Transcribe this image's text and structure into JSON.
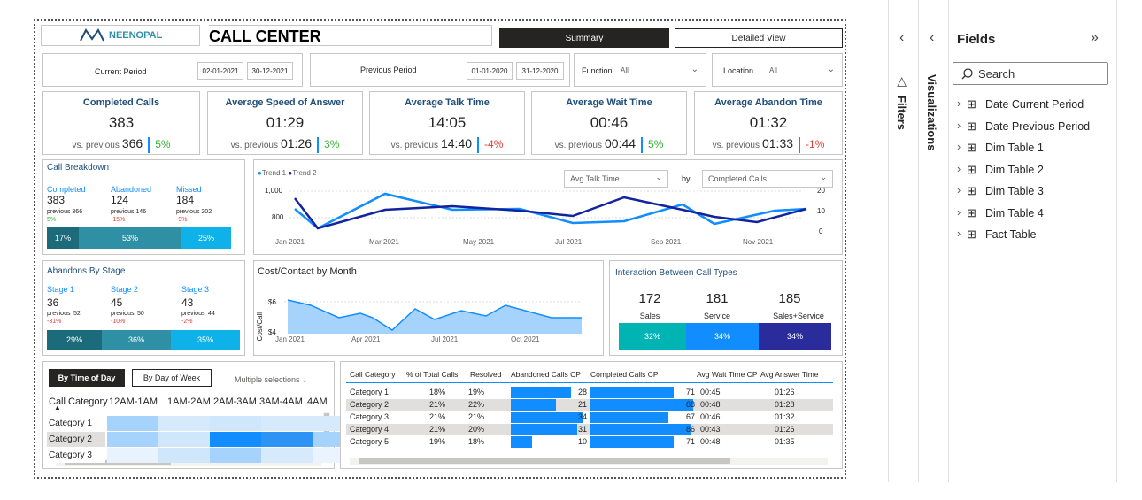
{
  "header": {
    "logo": "NEENOPAL",
    "title": "CALL CENTER",
    "btn_summary": "Summary",
    "btn_detailed": "Detailed View"
  },
  "filters": {
    "current_label": "Current Period",
    "current_from": "02-01-2021",
    "current_to": "30-12-2021",
    "previous_label": "Previous Period",
    "previous_from": "01-01-2020",
    "previous_to": "31-12-2020",
    "function_label": "Function",
    "function_value": "All",
    "location_label": "Location",
    "location_value": "All"
  },
  "kpis": [
    {
      "title": "Completed Calls",
      "value": "383",
      "prev_label": "vs. previous",
      "prev": "366",
      "delta": "5%",
      "dir": "up"
    },
    {
      "title": "Average Speed of Answer",
      "value": "01:29",
      "prev_label": "vs. previous",
      "prev": "01:26",
      "delta": "3%",
      "dir": "up"
    },
    {
      "title": "Average Talk Time",
      "value": "14:05",
      "prev_label": "vs. previous",
      "prev": "14:40",
      "delta": "-4%",
      "dir": "dn"
    },
    {
      "title": "Average Wait Time",
      "value": "00:46",
      "prev_label": "vs. previous",
      "prev": "00:44",
      "delta": "5%",
      "dir": "up"
    },
    {
      "title": "Average Abandon Time",
      "value": "01:32",
      "prev_label": "vs. previous",
      "prev": "01:33",
      "delta": "-1%",
      "dir": "dn"
    }
  ],
  "breakdown": {
    "title": "Call Breakdown",
    "items": [
      {
        "label": "Completed",
        "value": "383",
        "prev": "previous 366",
        "delta": "5%"
      },
      {
        "label": "Abandoned",
        "value": "124",
        "prev": "previous 146",
        "delta": "-15%"
      },
      {
        "label": "Missed",
        "value": "184",
        "prev": "previous 202",
        "delta": "-9%"
      }
    ],
    "bars": [
      "17%",
      "53%",
      "25%"
    ]
  },
  "stages": {
    "title": "Abandons By Stage",
    "items": [
      {
        "label": "Stage 1",
        "value": "36",
        "prev_label": "previous",
        "prev": "52",
        "delta": "-31%"
      },
      {
        "label": "Stage 2",
        "value": "45",
        "prev_label": "previous",
        "prev": "50",
        "delta": "-10%"
      },
      {
        "label": "Stage 3",
        "value": "43",
        "prev_label": "previous",
        "prev": "44",
        "delta": "-2%"
      }
    ],
    "bars": [
      "29%",
      "36%",
      "35%"
    ]
  },
  "trend": {
    "legend1": "Trend 1",
    "legend2": "Trend 2",
    "metric": "Avg Talk Time",
    "by": "by",
    "metric2": "Completed Calls",
    "y_left": [
      "1,000",
      "800"
    ],
    "y_right": [
      "20",
      "10",
      "0"
    ],
    "x": [
      "Jan 2021",
      "Mar 2021",
      "May 2021",
      "Jul 2021",
      "Sep 2021",
      "Nov 2021"
    ]
  },
  "cost": {
    "title": "Cost/Contact by Month",
    "ylabel": "Cost/Call",
    "y": [
      "$6",
      "$4"
    ],
    "x": [
      "Jan 2021",
      "Apr 2021",
      "Jul 2021",
      "Oct 2021"
    ]
  },
  "interaction": {
    "title": "Interaction Between Call Types",
    "items": [
      {
        "value": "172",
        "label": "Sales",
        "pct": "32%"
      },
      {
        "value": "181",
        "label": "Service",
        "pct": "34%"
      },
      {
        "value": "185",
        "label": "Sales+Service",
        "pct": "34%"
      }
    ]
  },
  "heat": {
    "tab1": "By Time of Day",
    "tab2": "By Day of Week",
    "select": "Multiple selections",
    "cols": [
      "Call Category",
      "12AM-1AM",
      "1AM-2AM",
      "2AM-3AM",
      "3AM-4AM",
      "4AM"
    ],
    "rows": [
      "Category 1",
      "Category 2",
      "Category 3"
    ]
  },
  "table": {
    "cols": [
      "Call Category",
      "% of Total Calls",
      "Resolved",
      "Abandoned Calls CP",
      "Completed Calls CP",
      "Avg Wait Time CP",
      "Avg Answer Time"
    ],
    "rows": [
      {
        "cat": "Category 1",
        "pct": "18%",
        "res": "19%",
        "ab": "28",
        "comp": "71",
        "wait": "00:45",
        "ans": "01:26"
      },
      {
        "cat": "Category 2",
        "pct": "21%",
        "res": "22%",
        "ab": "21",
        "comp": "88",
        "wait": "00:48",
        "ans": "01:28"
      },
      {
        "cat": "Category 3",
        "pct": "21%",
        "res": "21%",
        "ab": "34",
        "comp": "67",
        "wait": "00:46",
        "ans": "01:32"
      },
      {
        "cat": "Category 4",
        "pct": "21%",
        "res": "20%",
        "ab": "31",
        "comp": "86",
        "wait": "00:43",
        "ans": "01:26"
      },
      {
        "cat": "Category 5",
        "pct": "19%",
        "res": "18%",
        "ab": "10",
        "comp": "71",
        "wait": "00:48",
        "ans": "01:35"
      }
    ]
  },
  "panes": {
    "filters": "Filters",
    "visualizations": "Visualizations",
    "fields_title": "Fields",
    "search": "Search",
    "fields": [
      "Date Current Period",
      "Date Previous Period",
      "Dim Table 1",
      "Dim Table 2",
      "Dim Table 3",
      "Dim Table 4",
      "Fact Table"
    ]
  },
  "colors": {
    "dark": "#252423",
    "blue": "#118dff",
    "navy": "#12239e",
    "teal": "#1b6b7a",
    "tealmid": "#2e8fa5",
    "cyan": "#0eb2e8"
  }
}
